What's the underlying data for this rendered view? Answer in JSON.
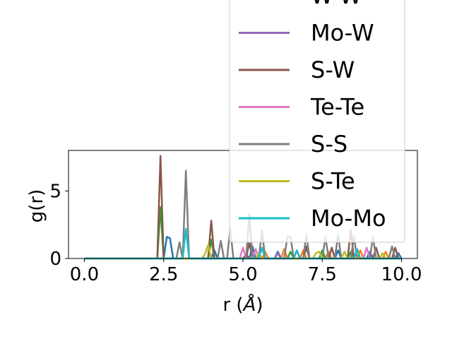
{
  "chart_data": {
    "type": "line",
    "xlabel": "r (",
    "xlabel_unit": "Å",
    "xlabel_close": ")",
    "ylabel": "g(r)",
    "xlim": [
      -0.5,
      10.5
    ],
    "ylim": [
      0,
      8
    ],
    "x_ticks": [
      0.0,
      2.5,
      5.0,
      7.5,
      10.0
    ],
    "x_tick_labels": [
      "0.0",
      "2.5",
      "5.0",
      "7.5",
      "10.0"
    ],
    "y_ticks": [
      0,
      5
    ],
    "y_tick_labels": [
      "0",
      "5"
    ],
    "grid": false,
    "legend_position": "upper-right (overflowing above plot)",
    "legend": [
      {
        "name": "W-W",
        "color": "#d62728"
      },
      {
        "name": "Mo-W",
        "color": "#9467bd"
      },
      {
        "name": "S-W",
        "color": "#8c564b"
      },
      {
        "name": "Te-Te",
        "color": "#e377c2"
      },
      {
        "name": "S-S",
        "color": "#7f7f7f"
      },
      {
        "name": "S-Te",
        "color": "#bcbd22"
      },
      {
        "name": "Mo-Mo",
        "color": "#17becf"
      }
    ],
    "series": [
      {
        "color": "#1f77b4",
        "points": [
          [
            0,
            0
          ],
          [
            2.5,
            0
          ],
          [
            2.6,
            1.6
          ],
          [
            2.7,
            1.5
          ],
          [
            2.8,
            0
          ],
          [
            4.0,
            0
          ],
          [
            4.1,
            0.6
          ],
          [
            4.2,
            0
          ],
          [
            5.2,
            0
          ],
          [
            5.3,
            0.9
          ],
          [
            5.4,
            0
          ],
          [
            6.0,
            0
          ],
          [
            6.1,
            0.5
          ],
          [
            6.2,
            0
          ],
          [
            6.9,
            0
          ],
          [
            7.0,
            0.8
          ],
          [
            7.1,
            0
          ],
          [
            7.9,
            0
          ],
          [
            8.0,
            0.6
          ],
          [
            8.1,
            0
          ],
          [
            8.9,
            0
          ],
          [
            9.0,
            0.5
          ],
          [
            9.1,
            0
          ],
          [
            9.8,
            0
          ],
          [
            9.9,
            0.4
          ],
          [
            10.0,
            0
          ]
        ]
      },
      {
        "color": "#ff7f0e",
        "points": [
          [
            0,
            0
          ],
          [
            5.6,
            0
          ],
          [
            5.7,
            0.5
          ],
          [
            5.8,
            0
          ],
          [
            6.2,
            0
          ],
          [
            6.3,
            0.7
          ],
          [
            6.4,
            0
          ],
          [
            6.8,
            0
          ],
          [
            6.9,
            0.6
          ],
          [
            7.0,
            0
          ],
          [
            7.6,
            0
          ],
          [
            7.7,
            0.5
          ],
          [
            7.8,
            0
          ],
          [
            8.6,
            0
          ],
          [
            8.7,
            0.6
          ],
          [
            8.8,
            0
          ],
          [
            9.4,
            0
          ],
          [
            9.5,
            0.5
          ],
          [
            9.6,
            0
          ],
          [
            10.0,
            0
          ]
        ]
      },
      {
        "color": "#2ca02c",
        "points": [
          [
            0,
            0
          ],
          [
            2.3,
            0
          ],
          [
            2.4,
            3.8
          ],
          [
            2.5,
            0
          ],
          [
            3.9,
            0
          ],
          [
            4.0,
            1.4
          ],
          [
            4.1,
            0
          ],
          [
            6.4,
            0
          ],
          [
            6.5,
            0.5
          ],
          [
            6.6,
            0
          ],
          [
            7.4,
            0
          ],
          [
            7.5,
            0.6
          ],
          [
            7.6,
            0
          ],
          [
            8.3,
            0
          ],
          [
            8.4,
            0.5
          ],
          [
            8.5,
            0
          ],
          [
            10.0,
            0
          ]
        ]
      },
      {
        "color": "#d62728",
        "points": [
          [
            0,
            0
          ],
          [
            5.0,
            0
          ],
          [
            5.1,
            0.3
          ],
          [
            5.2,
            0
          ],
          [
            10.0,
            0
          ]
        ]
      },
      {
        "color": "#9467bd",
        "points": [
          [
            0,
            0
          ],
          [
            6.0,
            0
          ],
          [
            6.1,
            0.4
          ],
          [
            6.2,
            0
          ],
          [
            10.0,
            0
          ]
        ]
      },
      {
        "color": "#8c564b",
        "points": [
          [
            0,
            0
          ],
          [
            2.3,
            0
          ],
          [
            2.4,
            7.6
          ],
          [
            2.5,
            0
          ],
          [
            3.9,
            0
          ],
          [
            4.0,
            2.8
          ],
          [
            4.1,
            0
          ],
          [
            5.1,
            0
          ],
          [
            5.2,
            1.2
          ],
          [
            5.3,
            0
          ],
          [
            6.9,
            0
          ],
          [
            7.0,
            0.9
          ],
          [
            7.1,
            0
          ],
          [
            7.7,
            0
          ],
          [
            7.8,
            0.8
          ],
          [
            7.9,
            0
          ],
          [
            8.3,
            0
          ],
          [
            8.4,
            2.1
          ],
          [
            8.5,
            0
          ],
          [
            9.1,
            0
          ],
          [
            9.2,
            0.8
          ],
          [
            9.3,
            0
          ],
          [
            9.7,
            0
          ],
          [
            9.8,
            0.8
          ],
          [
            9.9,
            0
          ],
          [
            10.0,
            0
          ]
        ]
      },
      {
        "color": "#e377c2",
        "points": [
          [
            0,
            0
          ],
          [
            4.9,
            0
          ],
          [
            5.0,
            0.8
          ],
          [
            5.1,
            0
          ],
          [
            5.3,
            0
          ],
          [
            5.4,
            0.7
          ],
          [
            5.5,
            0
          ],
          [
            6.6,
            0
          ],
          [
            6.7,
            0.6
          ],
          [
            6.8,
            0
          ],
          [
            8.8,
            0
          ],
          [
            8.9,
            0.8
          ],
          [
            9.0,
            0
          ],
          [
            10.0,
            0
          ]
        ]
      },
      {
        "color": "#7f7f7f",
        "points": [
          [
            0,
            0
          ],
          [
            2.9,
            0
          ],
          [
            3.0,
            1.2
          ],
          [
            3.1,
            0
          ],
          [
            3.2,
            6.5
          ],
          [
            3.3,
            0
          ],
          [
            4.2,
            0
          ],
          [
            4.3,
            1.3
          ],
          [
            4.4,
            0
          ],
          [
            4.5,
            0
          ],
          [
            4.6,
            2.2
          ],
          [
            4.7,
            0
          ],
          [
            5.1,
            0
          ],
          [
            5.2,
            3.3
          ],
          [
            5.3,
            0
          ],
          [
            5.5,
            0
          ],
          [
            5.6,
            2.1
          ],
          [
            5.7,
            0
          ],
          [
            6.3,
            0
          ],
          [
            6.4,
            1.6
          ],
          [
            6.5,
            1.6
          ],
          [
            6.6,
            0
          ],
          [
            6.9,
            0
          ],
          [
            7.0,
            1.8
          ],
          [
            7.1,
            0
          ],
          [
            7.5,
            0
          ],
          [
            7.6,
            1.6
          ],
          [
            7.7,
            0
          ],
          [
            7.9,
            0
          ],
          [
            8.0,
            1.8
          ],
          [
            8.1,
            0
          ],
          [
            8.4,
            0
          ],
          [
            8.5,
            1.6
          ],
          [
            8.6,
            0
          ],
          [
            9.0,
            0
          ],
          [
            9.1,
            1.6
          ],
          [
            9.2,
            0
          ],
          [
            9.6,
            0
          ],
          [
            9.7,
            0.9
          ],
          [
            9.8,
            0
          ],
          [
            10.0,
            0
          ]
        ]
      },
      {
        "color": "#bcbd22",
        "points": [
          [
            0,
            0
          ],
          [
            3.7,
            0
          ],
          [
            3.8,
            0.3
          ],
          [
            3.9,
            1.0
          ],
          [
            4.0,
            0
          ],
          [
            5.4,
            0
          ],
          [
            5.5,
            0.4
          ],
          [
            5.6,
            0
          ],
          [
            7.2,
            0
          ],
          [
            7.3,
            0.4
          ],
          [
            7.4,
            0.5
          ],
          [
            7.5,
            0
          ],
          [
            8.1,
            0
          ],
          [
            8.2,
            0.5
          ],
          [
            8.3,
            0
          ],
          [
            9.3,
            0
          ],
          [
            9.4,
            0.4
          ],
          [
            9.5,
            0
          ],
          [
            10.0,
            0
          ]
        ]
      },
      {
        "color": "#17becf",
        "points": [
          [
            0,
            0
          ],
          [
            3.1,
            0
          ],
          [
            3.2,
            2.2
          ],
          [
            3.3,
            0
          ],
          [
            5.5,
            0
          ],
          [
            5.6,
            0.8
          ],
          [
            5.7,
            0
          ],
          [
            6.6,
            0
          ],
          [
            6.7,
            0.6
          ],
          [
            6.8,
            0
          ],
          [
            8.5,
            0
          ],
          [
            8.6,
            0.7
          ],
          [
            8.7,
            0
          ],
          [
            10.0,
            0
          ]
        ]
      }
    ]
  }
}
